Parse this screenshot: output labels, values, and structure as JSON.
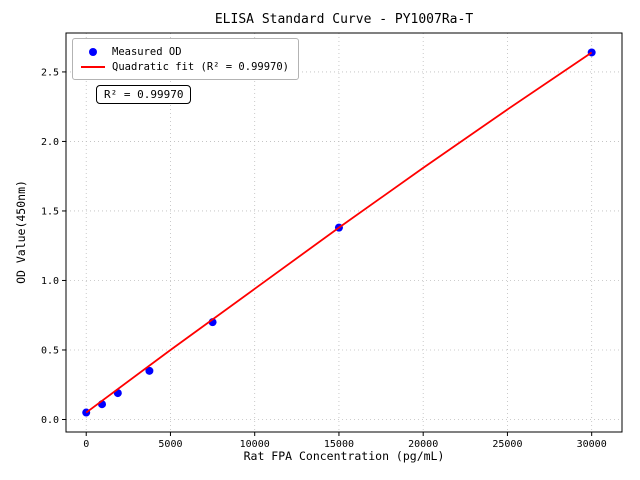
{
  "figure": {
    "background": "#ffffff"
  },
  "chart_data": {
    "type": "scatter",
    "title": "ELISA Standard Curve - PY1007Ra-T",
    "xlabel": "Rat FPA Concentration (pg/mL)",
    "ylabel": "OD Value(450nm)",
    "xlim": [
      -1200,
      31800
    ],
    "ylim": [
      -0.09,
      2.78
    ],
    "x_ticks": [
      0,
      5000,
      10000,
      15000,
      20000,
      25000,
      30000
    ],
    "y_ticks": [
      0.0,
      0.5,
      1.0,
      1.5,
      2.0,
      2.5
    ],
    "grid": true,
    "grid_color": "#bdbdbd",
    "legend_position": "upper-left",
    "series": [
      {
        "name": "Measured OD",
        "type": "scatter",
        "color": "#0000ff",
        "x": [
          0,
          937.5,
          1875,
          3750,
          7500,
          15000,
          30000
        ],
        "y": [
          0.05,
          0.11,
          0.19,
          0.35,
          0.7,
          1.38,
          2.64
        ]
      },
      {
        "name": "Quadratic fit (R² = 0.99970)",
        "type": "line",
        "color": "#ff0000",
        "x": [
          0,
          5000,
          10000,
          15000,
          20000,
          25000,
          30000
        ],
        "y": [
          0.05,
          0.5,
          0.94,
          1.38,
          1.81,
          2.23,
          2.64
        ]
      }
    ],
    "fit": {
      "kind": "quadratic",
      "r_squared": "0.99970"
    },
    "annotation": "R² = 0.99970"
  }
}
